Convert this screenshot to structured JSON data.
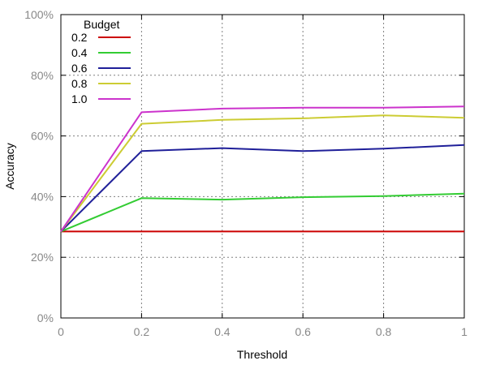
{
  "chart_data": {
    "type": "line",
    "title": "",
    "xlabel": "Threshold",
    "ylabel": "Accuracy",
    "xlim": [
      0,
      1
    ],
    "ylim": [
      0,
      100
    ],
    "grid": true,
    "legend_title": "Budget",
    "legend_position": "top-left",
    "x_ticks": [
      "0",
      "0.2",
      "0.4",
      "0.6",
      "0.8",
      "1"
    ],
    "y_ticks": [
      "0%",
      "20%",
      "40%",
      "60%",
      "80%",
      "100%"
    ],
    "x": [
      0,
      0.2,
      0.4,
      0.6,
      0.8,
      1.0
    ],
    "series": [
      {
        "name": "0.2",
        "color": "#cc0000",
        "values": [
          28.5,
          28.5,
          28.5,
          28.5,
          28.5,
          28.5
        ]
      },
      {
        "name": "0.4",
        "color": "#33cc33",
        "values": [
          28.5,
          39.5,
          39.0,
          39.8,
          40.2,
          41.0
        ]
      },
      {
        "name": "0.6",
        "color": "#1f1f99",
        "values": [
          28.5,
          55.0,
          56.0,
          55.0,
          55.8,
          57.0
        ]
      },
      {
        "name": "0.8",
        "color": "#cccc33",
        "values": [
          28.5,
          64.0,
          65.3,
          65.8,
          66.8,
          66.0
        ]
      },
      {
        "name": "1.0",
        "color": "#cc33cc",
        "values": [
          28.5,
          67.8,
          69.0,
          69.3,
          69.3,
          69.7
        ]
      }
    ]
  }
}
